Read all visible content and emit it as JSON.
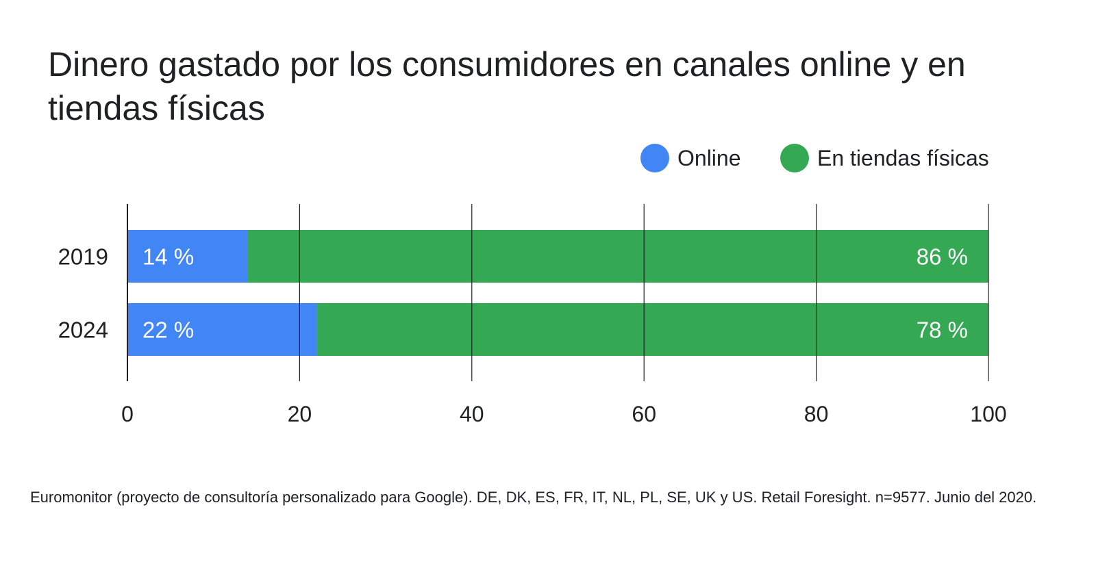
{
  "chart_data": {
    "type": "bar",
    "orientation": "horizontal",
    "stacked": true,
    "title": "Dinero gastado por los consumidores en canales online y en tiendas físicas",
    "categories": [
      "2019",
      "2024"
    ],
    "series": [
      {
        "name": "Online",
        "color": "#4285F4",
        "values": [
          14,
          22
        ],
        "labels": [
          "14 %",
          "22 %"
        ]
      },
      {
        "name": "En tiendas físicas",
        "color": "#34A853",
        "values": [
          86,
          78
        ],
        "labels": [
          "86 %",
          "78 %"
        ]
      }
    ],
    "xlim": [
      0,
      100
    ],
    "xticks": [
      "0",
      "20",
      "40",
      "60",
      "80",
      "100"
    ],
    "grid": true,
    "legend_position": "top-right"
  },
  "source": "Euromonitor (proyecto de consultoría personalizado para Google). DE, DK, ES, FR, IT, NL, PL, SE, UK y US. Retail Foresight. n=9577. Junio del 2020."
}
